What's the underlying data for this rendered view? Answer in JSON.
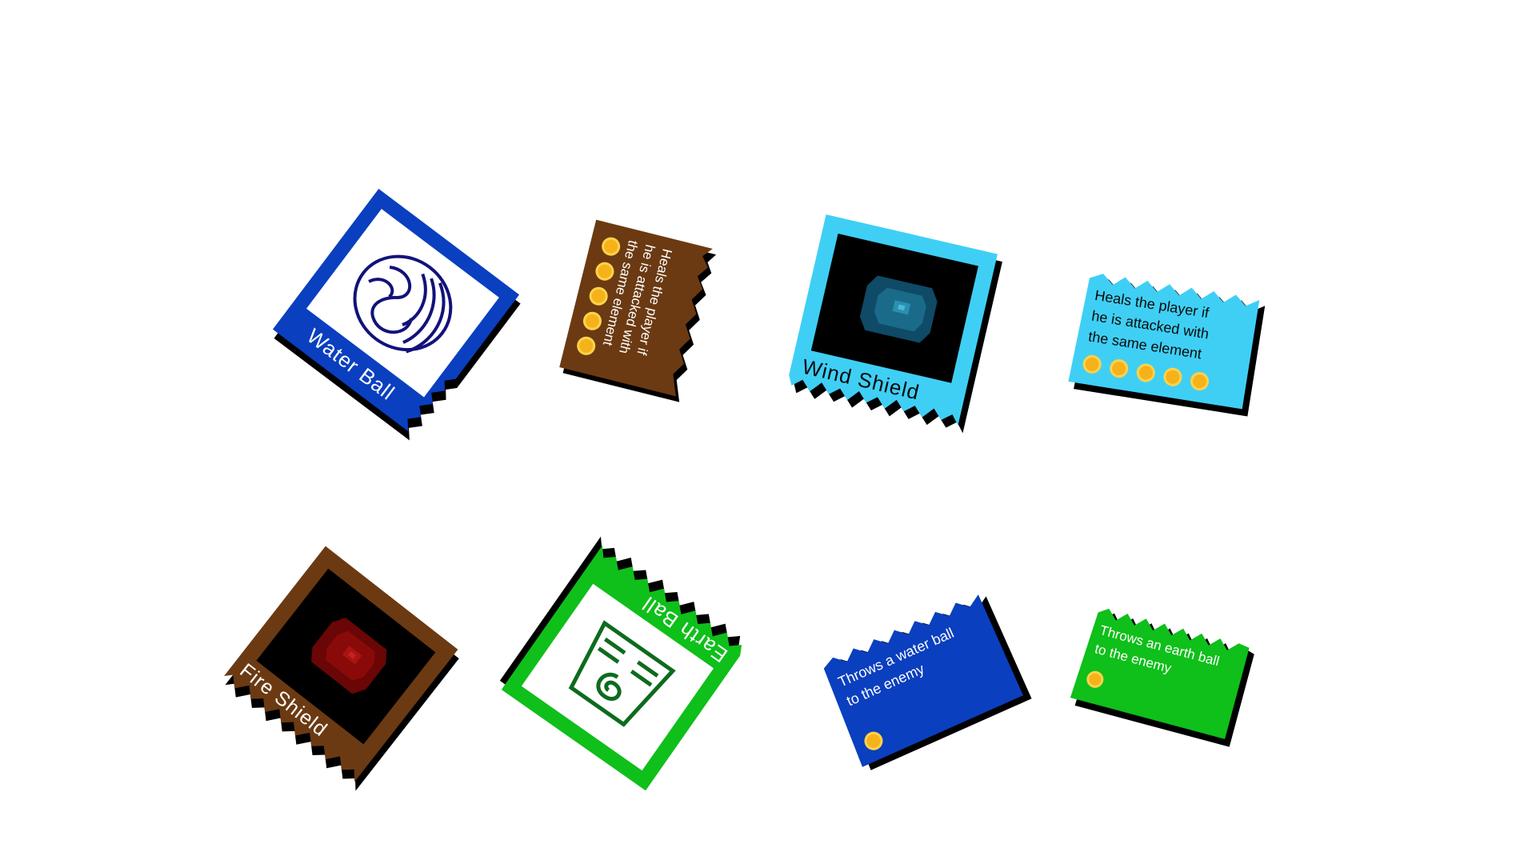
{
  "cards": {
    "water_ball": {
      "title": "Water Ball",
      "icon": "water-swirl-icon",
      "color": "#0a3fbf",
      "art_color": "#12127a"
    },
    "heal_brown": {
      "description_line1": "Heals the player if",
      "description_line2": "he is attacked with",
      "description_line3": "the same element",
      "energy": 5,
      "color": "#6b3a12"
    },
    "wind_shield": {
      "title": "Wind Shield",
      "icon": "wind-shield-orb-icon",
      "color": "#3fcff5",
      "art_color": "#0f4a66"
    },
    "heal_cyan": {
      "description_line1": "Heals the player if",
      "description_line2": "he is attacked with",
      "description_line3": "the same element",
      "energy": 5,
      "color": "#3fcff5"
    },
    "fire_shield": {
      "title": "Fire Shield",
      "icon": "fire-shield-orb-icon",
      "color": "#6b3a12",
      "art_color": "#8a0a0a"
    },
    "earth_ball": {
      "title": "Earth Ball",
      "icon": "earth-glyph-icon",
      "color": "#0fbf1a",
      "art_color": "#0d6b1e"
    },
    "throw_water": {
      "description_line1": "Throws a water ball",
      "description_line2": "to the enemy",
      "energy": 1,
      "color": "#0a3fbf"
    },
    "throw_earth": {
      "description_line1": "Throws an earth ball",
      "description_line2": "to the enemy",
      "energy": 1,
      "color": "#0fbf1a"
    }
  },
  "colors": {
    "shadow": "#000000",
    "energy_orb": "#f5b21a",
    "energy_glow": "#ffd24a",
    "text_light": "#ffffff",
    "text_dark": "#0a0a0a"
  }
}
